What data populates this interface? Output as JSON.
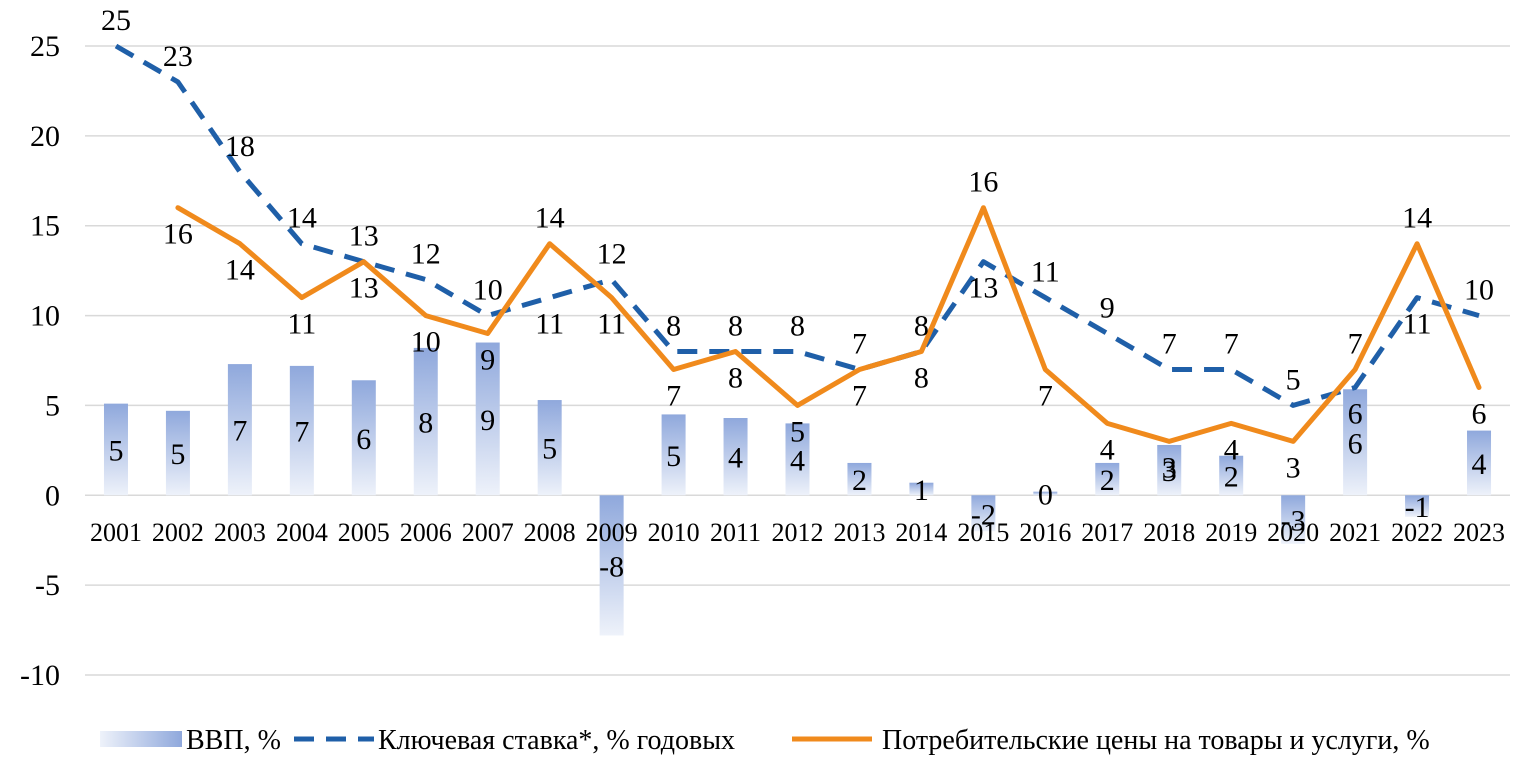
{
  "chart_data": {
    "type": "bar+line",
    "categories": [
      "2001",
      "2002",
      "2003",
      "2004",
      "2005",
      "2006",
      "2007",
      "2008",
      "2009",
      "2010",
      "2011",
      "2012",
      "2013",
      "2014",
      "2015",
      "2016",
      "2017",
      "2018",
      "2019",
      "2020",
      "2021",
      "2022",
      "2023"
    ],
    "ylim": [
      -10,
      25
    ],
    "yticks": [
      -10,
      -5,
      0,
      5,
      10,
      15,
      20,
      25
    ],
    "grid": true,
    "legend_position": "bottom",
    "series": [
      {
        "name": "ВВП, %",
        "kind": "bar",
        "color": "#8FA8DC",
        "values": [
          5.1,
          4.7,
          7.3,
          7.2,
          6.4,
          8.2,
          8.5,
          5.3,
          -7.8,
          4.5,
          4.3,
          4.0,
          1.8,
          0.7,
          -2.0,
          0.2,
          1.8,
          2.8,
          2.2,
          -2.7,
          5.9,
          -1.2,
          3.6
        ],
        "labels": [
          "5",
          "5",
          "7",
          "7",
          "6",
          "8",
          "9",
          "5",
          "-8",
          "5",
          "4",
          "4",
          "2",
          "1",
          "-2",
          "0",
          "2",
          "3",
          "2",
          "-3",
          "6",
          "-1",
          "4"
        ]
      },
      {
        "name": "Ключевая ставка*, % годовых",
        "kind": "line-dashed",
        "color": "#1F5FA8",
        "values": [
          25,
          23,
          18,
          14,
          13,
          12,
          10,
          11,
          12,
          8,
          8,
          8,
          7,
          8,
          13,
          11,
          9,
          7,
          7,
          5,
          6,
          11,
          10
        ],
        "labels": [
          "25",
          "23",
          "18",
          "14",
          "13",
          "12",
          "10",
          "11",
          "12",
          "8",
          "8",
          "8",
          "7",
          "8",
          "13",
          "11",
          "9",
          "7",
          "7",
          "5",
          "6",
          "11",
          "10"
        ]
      },
      {
        "name": "Потребительские цены на товары и услуги, %",
        "kind": "line",
        "color": "#F08A1C",
        "values": [
          null,
          16,
          14,
          11,
          13,
          10,
          9,
          14,
          11,
          7,
          8,
          5,
          7,
          8,
          16,
          7,
          4,
          3,
          4,
          3,
          7,
          14,
          6
        ],
        "labels": [
          "",
          "16",
          "14",
          "11",
          "13",
          "10",
          "9",
          "14",
          "11",
          "7",
          "8",
          "5",
          "7",
          "8",
          "16",
          "7",
          "4",
          "3",
          "4",
          "3",
          "7",
          "14",
          "6"
        ]
      }
    ]
  }
}
